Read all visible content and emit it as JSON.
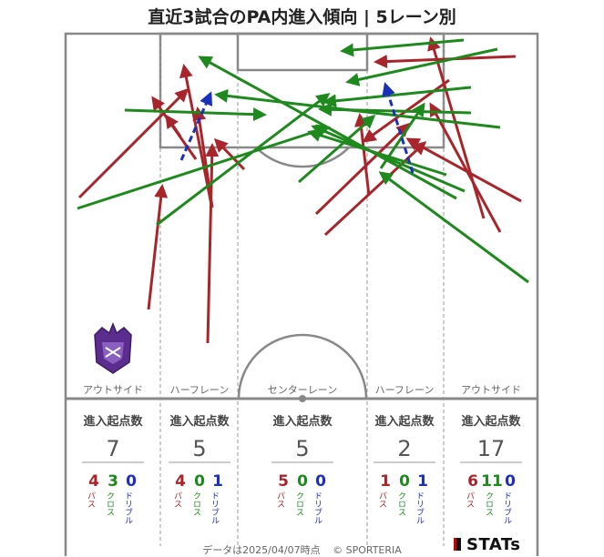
{
  "title": "直近3試合のPA内進入傾向 | 5レーン別",
  "footer": {
    "date": "データは2025/04/07時点",
    "copyright": "© SPORTERIA",
    "brand": "STATs"
  },
  "colors": {
    "pass": "#a8262b",
    "cross": "#1e8a1e",
    "dribble": "#1c2fb8"
  },
  "lanes": [
    {
      "name": "アウトサイド",
      "header": "進入起点数",
      "total": "7",
      "stats": [
        {
          "value": "4",
          "label": "パス",
          "kind": "pass"
        },
        {
          "value": "3",
          "label": "クロス",
          "kind": "cross"
        },
        {
          "value": "0",
          "label": "ドリブル",
          "kind": "dribble"
        }
      ]
    },
    {
      "name": "ハーフレーン",
      "header": "進入起点数",
      "total": "5",
      "stats": [
        {
          "value": "4",
          "label": "パス",
          "kind": "pass"
        },
        {
          "value": "0",
          "label": "クロス",
          "kind": "cross"
        },
        {
          "value": "1",
          "label": "ドリブル",
          "kind": "dribble"
        }
      ]
    },
    {
      "name": "センターレーン",
      "header": "進入起点数",
      "total": "5",
      "stats": [
        {
          "value": "5",
          "label": "パス",
          "kind": "pass"
        },
        {
          "value": "0",
          "label": "クロス",
          "kind": "cross"
        },
        {
          "value": "0",
          "label": "ドリブル",
          "kind": "dribble"
        }
      ]
    },
    {
      "name": "ハーフレーン",
      "header": "進入起点数",
      "total": "2",
      "stats": [
        {
          "value": "1",
          "label": "パス",
          "kind": "pass"
        },
        {
          "value": "0",
          "label": "クロス",
          "kind": "cross"
        },
        {
          "value": "1",
          "label": "ドリブル",
          "kind": "dribble"
        }
      ]
    },
    {
      "name": "アウトサイド",
      "header": "進入起点数",
      "total": "17",
      "stats": [
        {
          "value": "6",
          "label": "パス",
          "kind": "pass"
        },
        {
          "value": "11",
          "label": "クロス",
          "kind": "cross"
        },
        {
          "value": "0",
          "label": "ドリブル",
          "kind": "dribble"
        }
      ]
    }
  ],
  "logo_icon": "club-crest-icon"
}
